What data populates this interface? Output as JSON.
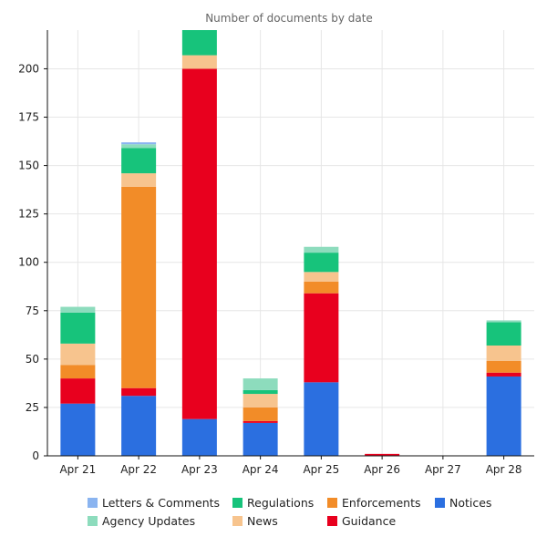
{
  "chart_data": {
    "type": "bar",
    "stacked": true,
    "title": "Number of documents by date",
    "xlabel": "",
    "ylabel": "",
    "categories": [
      "Apr 21",
      "Apr 22",
      "Apr 23",
      "Apr 24",
      "Apr 25",
      "Apr 26",
      "Apr 27",
      "Apr 28"
    ],
    "ylim": [
      0,
      220
    ],
    "yticks": [
      0,
      25,
      50,
      75,
      100,
      125,
      150,
      175,
      200
    ],
    "grid": true,
    "legend_position": "bottom",
    "series": [
      {
        "name": "Notices",
        "color": "#2b6fe0",
        "values": [
          27,
          31,
          19,
          17,
          38,
          0,
          0,
          41
        ]
      },
      {
        "name": "Guidance",
        "color": "#e8001e",
        "values": [
          13,
          4,
          181,
          1,
          46,
          1,
          0,
          2
        ]
      },
      {
        "name": "Enforcements",
        "color": "#f28c28",
        "values": [
          7,
          104,
          0,
          7,
          6,
          0,
          0,
          6
        ]
      },
      {
        "name": "News",
        "color": "#f7c48e",
        "values": [
          11,
          7,
          7,
          7,
          5,
          0,
          0,
          8
        ]
      },
      {
        "name": "Regulations",
        "color": "#17c37b",
        "values": [
          16,
          13,
          13,
          2,
          10,
          0,
          0,
          12
        ]
      },
      {
        "name": "Agency Updates",
        "color": "#8ddcbd",
        "values": [
          3,
          2,
          0,
          6,
          3,
          0,
          0,
          1
        ]
      },
      {
        "name": "Letters & Comments",
        "color": "#8ab4f0",
        "values": [
          0,
          1,
          0,
          0,
          0,
          0,
          0,
          0
        ]
      }
    ],
    "legend_order": [
      "Letters & Comments",
      "Regulations",
      "Enforcements",
      "Notices",
      "Agency Updates",
      "News",
      "Guidance"
    ]
  }
}
